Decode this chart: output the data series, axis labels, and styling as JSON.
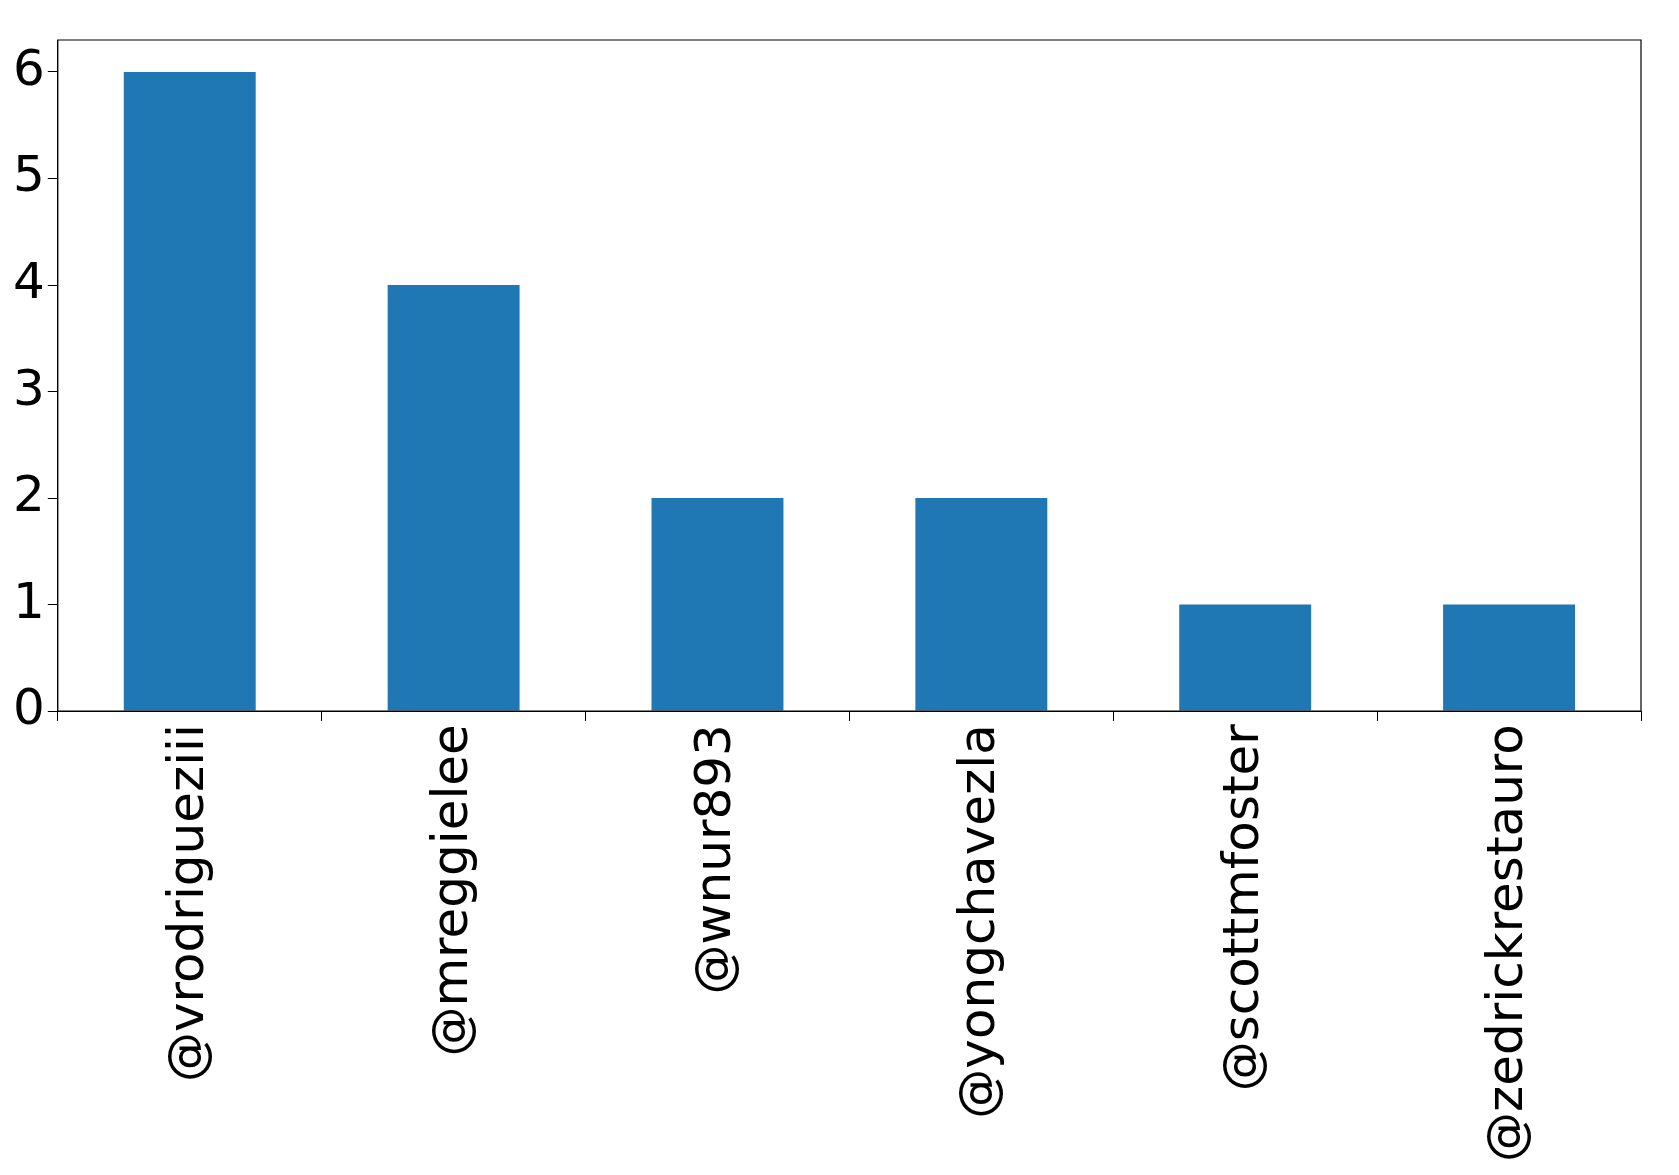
{
  "chart_data": {
    "type": "bar",
    "categories": [
      "@vrodrigueziii",
      "@mreggielee",
      "@wnur893",
      "@yongchavezla",
      "@scottmfoster",
      "@zedrickrestauro"
    ],
    "values": [
      6,
      4,
      2,
      2,
      1,
      1
    ],
    "color": "#1f77b4",
    "ylim": [
      0,
      6.3
    ],
    "yticks": [
      0,
      1,
      2,
      3,
      4,
      5,
      6
    ],
    "grid": false,
    "legend": false
  }
}
